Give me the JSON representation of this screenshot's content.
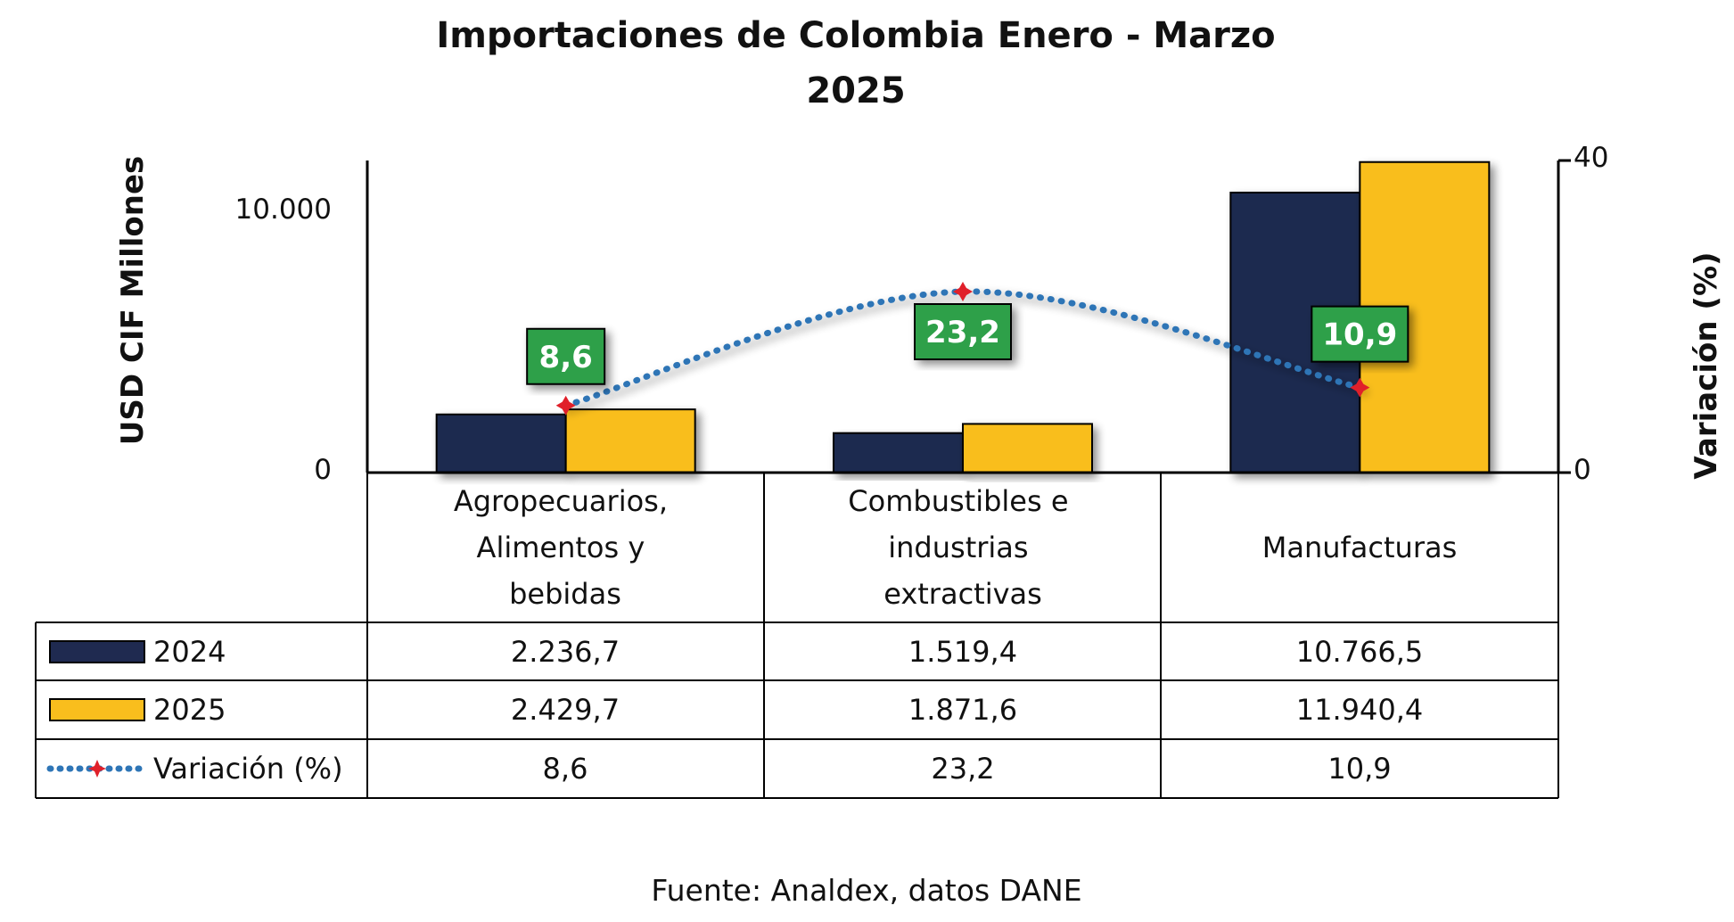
{
  "chart_data": {
    "type": "bar",
    "title": "Importaciones de Colombia Enero - Marzo",
    "title_line2": "2025",
    "ylabel": "USD CIF Millones",
    "y2label": "Variación (%)",
    "ylim": [
      0,
      12000
    ],
    "y2lim": [
      0,
      40
    ],
    "yticks": [
      "0",
      "10.000"
    ],
    "y2ticks": [
      "0",
      "40"
    ],
    "categories": [
      [
        "Agropecuarios,",
        "Alimentos y",
        "bebidas"
      ],
      [
        "Combustibles e",
        "industrias",
        "extractivas"
      ],
      [
        "Manufacturas"
      ]
    ],
    "series": [
      {
        "name": "2024",
        "type": "bar",
        "axis": "left",
        "color": "#1f2a50",
        "values": [
          2236.7,
          1519.4,
          10766.5
        ],
        "table_values": [
          "2.236,7",
          "1.519,4",
          "10.766,5"
        ]
      },
      {
        "name": "2025",
        "type": "bar",
        "axis": "left",
        "color": "#f9be1d",
        "values": [
          2429.7,
          1871.6,
          11940.4
        ],
        "table_values": [
          "2.429,7",
          "1.871,6",
          "11.940,4"
        ]
      },
      {
        "name": "Variación (%)",
        "type": "line",
        "axis": "right",
        "color": "#2e75b6",
        "marker_color": "#e0202a",
        "label_bg": "#2ea04a",
        "values": [
          8.6,
          23.2,
          10.9
        ],
        "table_values": [
          "8,6",
          "23,2",
          "10,9"
        ]
      }
    ],
    "grid": false,
    "legend": "data-table"
  },
  "source": "Fuente: Analdex, datos DANE"
}
